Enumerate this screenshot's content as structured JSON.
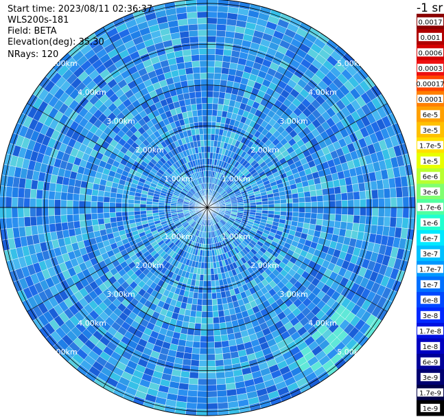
{
  "header": {
    "start_time": "Start time: 2023/08/11 02:36:37",
    "instrument": "WLS200s-181",
    "field": "Field: BETA",
    "elevation": "Elevation(deg): 35.30",
    "nrays": "NRays: 120"
  },
  "colorbar": {
    "unit_label": "-1 sr",
    "labels": [
      "0.0017",
      "0.001",
      "0.0006",
      "0.0003",
      "0.00017",
      "0.0001",
      "6e-5",
      "3e-5",
      "1.7e-5",
      "1e-5",
      "6e-6",
      "3e-6",
      "1.7e-6",
      "1e-6",
      "6e-7",
      "3e-7",
      "1.7e-7",
      "1e-7",
      "6e-8",
      "3e-8",
      "1.7e-8",
      "1e-8",
      "6e-9",
      "3e-9",
      "1.7e-9",
      "1e-9"
    ],
    "colors": [
      "#8b0000",
      "#b00000",
      "#d40000",
      "#ee1010",
      "#ff4500",
      "#ff7f00",
      "#ffa000",
      "#ffc000",
      "#ffe000",
      "#e8ff00",
      "#b8ff30",
      "#80ff70",
      "#50ffa0",
      "#20ffd0",
      "#00e8ff",
      "#00c0ff",
      "#0098ff",
      "#0070ff",
      "#0048ff",
      "#0028ff",
      "#0010e0",
      "#0000c0",
      "#000098",
      "#000070",
      "#000048",
      "#000000"
    ]
  },
  "chart_data": {
    "type": "heatmap",
    "projection": "polar PPI",
    "n_rays": 120,
    "range_ring_labels": [
      "1.00km",
      "2.00km",
      "3.00km",
      "4.00km",
      "5.00km"
    ],
    "range_rings_km": [
      1,
      2,
      3,
      4,
      5
    ],
    "max_range_km": 5.1,
    "field": "BETA",
    "elevation_deg": 35.3,
    "dominant_levels": [
      "6e-8",
      "3e-8",
      "1e-7",
      "1.7e-7"
    ],
    "grid": true
  }
}
